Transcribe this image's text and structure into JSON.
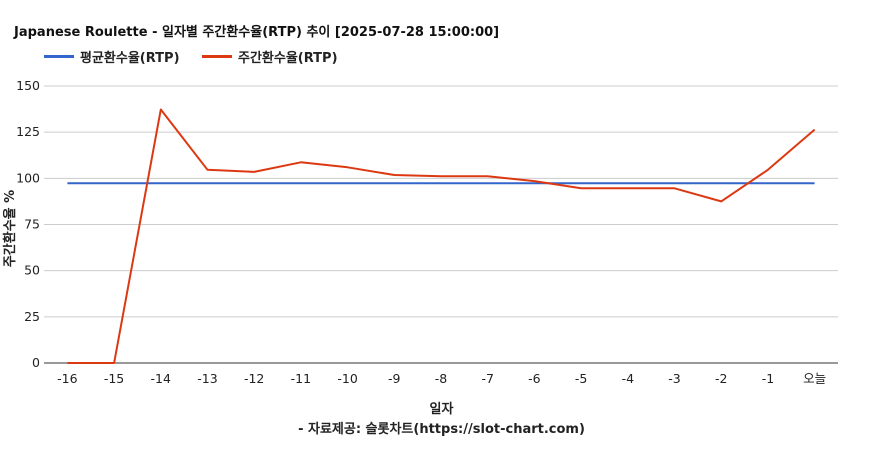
{
  "chart_data": {
    "type": "line",
    "title": "Japanese Roulette - 일자별 주간환수율(RTP) 추이 [2025-07-28 15:00:00]",
    "xlabel": "일자",
    "ylabel": "주간환수율 %",
    "source": "- 자료제공: 슬롯차트(https://slot-chart.com)",
    "categories": [
      "-16",
      "-15",
      "-14",
      "-13",
      "-12",
      "-11",
      "-10",
      "-9",
      "-8",
      "-7",
      "-6",
      "-5",
      "-4",
      "-3",
      "-2",
      "-1",
      "오늘"
    ],
    "ylim": [
      0,
      150
    ],
    "yticks": [
      0,
      25,
      50,
      75,
      100,
      125,
      150
    ],
    "grid": true,
    "legend_position": "top-left",
    "series": [
      {
        "name": "평균환수율(RTP)",
        "color": "#3366cc",
        "values": [
          97.3,
          97.3,
          97.3,
          97.3,
          97.3,
          97.3,
          97.3,
          97.3,
          97.3,
          97.3,
          97.3,
          97.3,
          97.3,
          97.3,
          97.3,
          97.3,
          97.3
        ]
      },
      {
        "name": "주간환수율(RTP)",
        "color": "#dc3912",
        "values": [
          0,
          0,
          137.3,
          104.6,
          103.5,
          108.7,
          106.0,
          101.8,
          101.1,
          101.1,
          98.5,
          94.6,
          94.6,
          94.6,
          87.5,
          104.6,
          126.4
        ]
      }
    ]
  }
}
